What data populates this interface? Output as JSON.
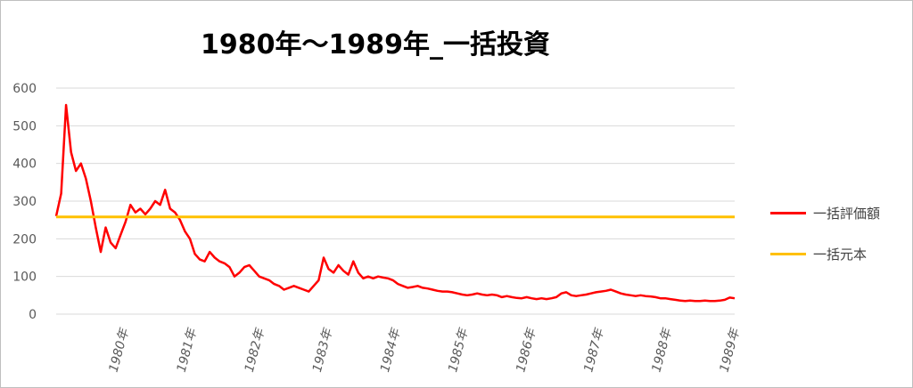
{
  "chart_data": {
    "type": "line",
    "title": "1980年～1989年_一括投資",
    "ylim": [
      0,
      600
    ],
    "yticks": [
      0,
      100,
      200,
      300,
      400,
      500,
      600
    ],
    "x_tick_labels": [
      "1980年",
      "1981年",
      "1982年",
      "1983年",
      "1984年",
      "1985年",
      "1986年",
      "1987年",
      "1988年",
      "1989年"
    ],
    "grid": "horizontal",
    "legend_position": "right",
    "series": [
      {
        "name": "一括評価額",
        "color": "#ff0000",
        "values": [
          260,
          320,
          555,
          430,
          380,
          400,
          360,
          300,
          230,
          165,
          230,
          190,
          175,
          210,
          245,
          290,
          270,
          280,
          265,
          280,
          300,
          290,
          330,
          280,
          270,
          250,
          220,
          200,
          160,
          145,
          140,
          165,
          150,
          140,
          135,
          125,
          100,
          110,
          125,
          130,
          115,
          100,
          95,
          90,
          80,
          75,
          65,
          70,
          75,
          70,
          65,
          60,
          75,
          90,
          150,
          120,
          110,
          130,
          115,
          105,
          140,
          110,
          95,
          100,
          95,
          100,
          97,
          95,
          90,
          80,
          75,
          70,
          72,
          75,
          70,
          68,
          65,
          62,
          60,
          60,
          58,
          55,
          52,
          50,
          52,
          55,
          52,
          50,
          52,
          50,
          45,
          48,
          45,
          43,
          42,
          45,
          42,
          40,
          42,
          40,
          42,
          45,
          55,
          58,
          50,
          48,
          50,
          52,
          55,
          58,
          60,
          62,
          65,
          60,
          55,
          52,
          50,
          48,
          50,
          48,
          47,
          45,
          42,
          42,
          40,
          38,
          36,
          35,
          36,
          35,
          35,
          36,
          35,
          35,
          36,
          38,
          44,
          42
        ]
      },
      {
        "name": "一括元本",
        "color": "#ffc000",
        "values": [
          258,
          258
        ]
      }
    ]
  }
}
